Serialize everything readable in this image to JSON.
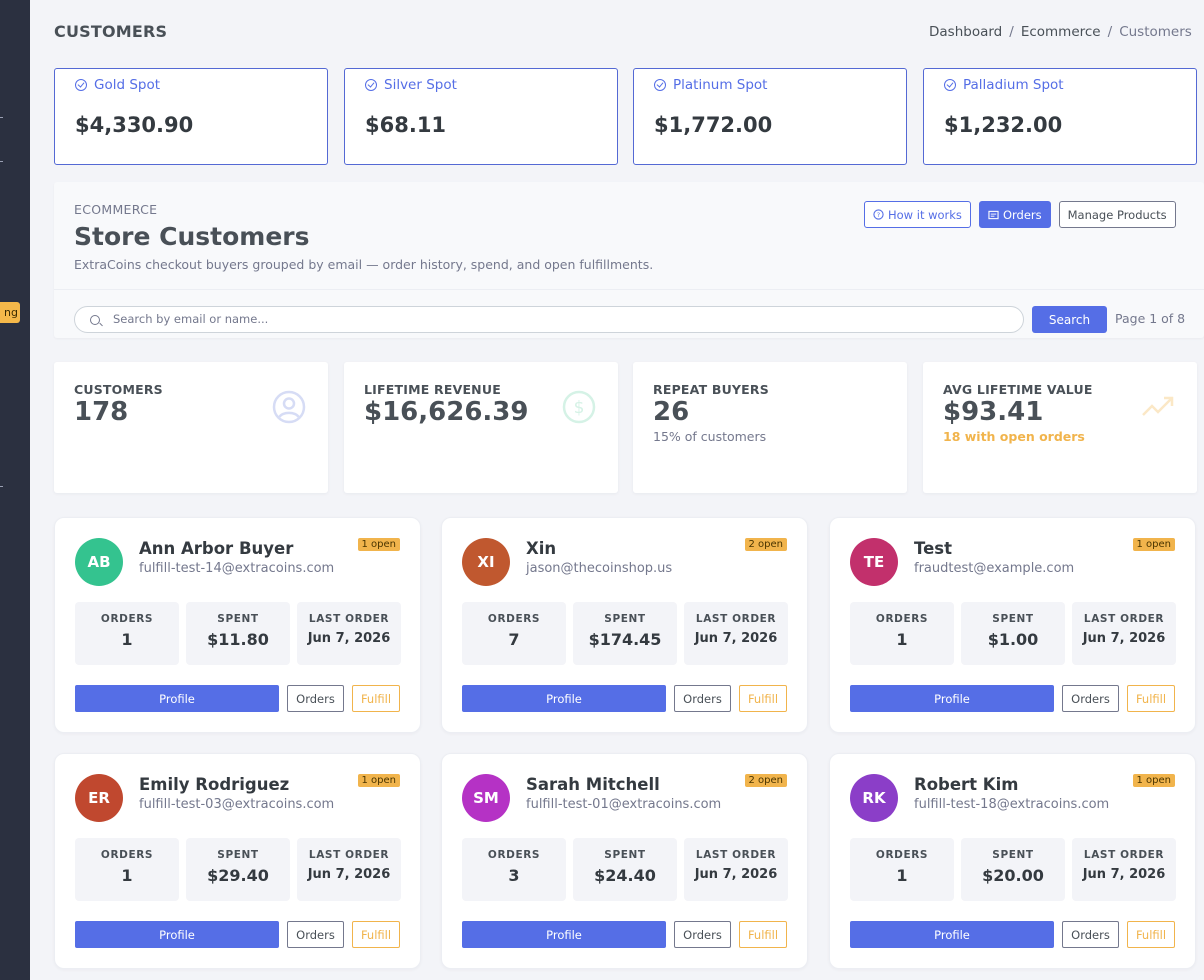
{
  "sidebar": {
    "badge_label": "ng"
  },
  "page": {
    "title": "CUSTOMERS"
  },
  "breadcrumb": {
    "items": [
      "Dashboard",
      "Ecommerce",
      "Customers"
    ]
  },
  "spots": [
    {
      "label": "Gold Spot",
      "value": "$4,330.90"
    },
    {
      "label": "Silver Spot",
      "value": "$68.11"
    },
    {
      "label": "Platinum Spot",
      "value": "$1,772.00"
    },
    {
      "label": "Palladium Spot",
      "value": "$1,232.00"
    }
  ],
  "hero": {
    "eyebrow": "ECOMMERCE",
    "title": "Store Customers",
    "subtitle": "ExtraCoins checkout buyers grouped by email — order history, spend, and open fulfillments.",
    "how_it_works": "How it works",
    "orders": "Orders",
    "manage_products": "Manage Products"
  },
  "search": {
    "placeholder": "Search by email or name...",
    "button": "Search",
    "page_info": "Page 1 of 8"
  },
  "stats": [
    {
      "label": "CUSTOMERS",
      "value": "178",
      "note": ""
    },
    {
      "label": "LIFETIME REVENUE",
      "value": "$16,626.39",
      "note": ""
    },
    {
      "label": "REPEAT BUYERS",
      "value": "26",
      "note": "15% of customers"
    },
    {
      "label": "AVG LIFETIME VALUE",
      "value": "$93.41",
      "note": "18 with open orders"
    }
  ],
  "metric_labels": {
    "orders": "ORDERS",
    "spent": "SPENT",
    "last_order": "LAST ORDER"
  },
  "card_buttons": {
    "profile": "Profile",
    "orders": "Orders",
    "fulfill": "Fulfill"
  },
  "customers": [
    {
      "initials": "AB",
      "color": "#34c38f",
      "name": "Ann Arbor Buyer",
      "email": "fulfill-test-14@extracoins.com",
      "open": "1 open",
      "orders": "1",
      "spent": "$11.80",
      "last_order": "Jun 7, 2026"
    },
    {
      "initials": "XI",
      "color": "#c0582f",
      "name": "Xin",
      "email": "jason@thecoinshop.us",
      "open": "2 open",
      "orders": "7",
      "spent": "$174.45",
      "last_order": "Jun 7, 2026"
    },
    {
      "initials": "TE",
      "color": "#c2306c",
      "name": "Test",
      "email": "fraudtest@example.com",
      "open": "1 open",
      "orders": "1",
      "spent": "$1.00",
      "last_order": "Jun 7, 2026"
    },
    {
      "initials": "ER",
      "color": "#c0482f",
      "name": "Emily Rodriguez",
      "email": "fulfill-test-03@extracoins.com",
      "open": "1 open",
      "orders": "1",
      "spent": "$29.40",
      "last_order": "Jun 7, 2026"
    },
    {
      "initials": "SM",
      "color": "#b532c5",
      "name": "Sarah Mitchell",
      "email": "fulfill-test-01@extracoins.com",
      "open": "2 open",
      "orders": "3",
      "spent": "$24.40",
      "last_order": "Jun 7, 2026"
    },
    {
      "initials": "RK",
      "color": "#8b3ec8",
      "name": "Robert Kim",
      "email": "fulfill-test-18@extracoins.com",
      "open": "1 open",
      "orders": "1",
      "spent": "$20.00",
      "last_order": "Jun 7, 2026"
    }
  ]
}
